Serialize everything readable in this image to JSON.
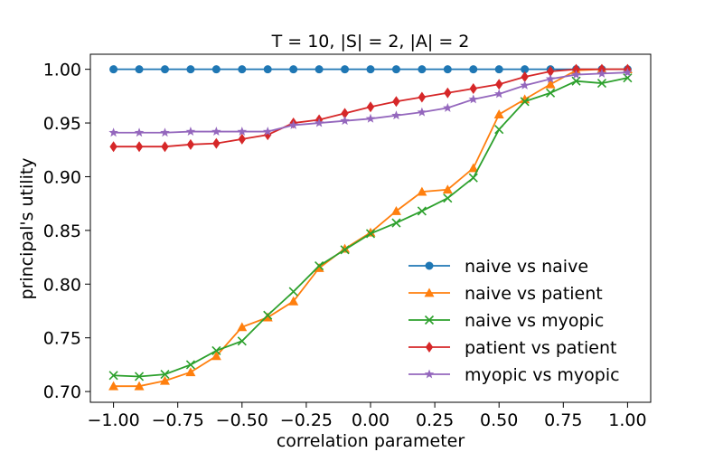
{
  "chart_data": {
    "type": "line",
    "title": "T = 10, |S| = 2, |A| = 2",
    "xlabel": "correlation parameter",
    "ylabel": "principal's utility",
    "xlim": [
      -1.09,
      1.09
    ],
    "ylim": [
      0.69,
      1.014
    ],
    "xticks": [
      -1.0,
      -0.75,
      -0.5,
      -0.25,
      0.0,
      0.25,
      0.5,
      0.75,
      1.0
    ],
    "xtick_labels": [
      "−1.00",
      "−0.75",
      "−0.50",
      "−0.25",
      "0.00",
      "0.25",
      "0.50",
      "0.75",
      "1.00"
    ],
    "yticks": [
      0.7,
      0.75,
      0.8,
      0.85,
      0.9,
      0.95,
      1.0
    ],
    "ytick_labels": [
      "0.70",
      "0.75",
      "0.80",
      "0.85",
      "0.90",
      "0.95",
      "1.00"
    ],
    "legend_position": "lower-right",
    "x": [
      -1.0,
      -0.9,
      -0.8,
      -0.7,
      -0.6,
      -0.5,
      -0.4,
      -0.3,
      -0.2,
      -0.1,
      0.0,
      0.1,
      0.2,
      0.3,
      0.4,
      0.5,
      0.6,
      0.7,
      0.8,
      0.9,
      1.0
    ],
    "series": [
      {
        "name": "naive vs naive",
        "color": "#1f77b4",
        "marker": "circle",
        "values": [
          1.0,
          1.0,
          1.0,
          1.0,
          1.0,
          1.0,
          1.0,
          1.0,
          1.0,
          1.0,
          1.0,
          1.0,
          1.0,
          1.0,
          1.0,
          1.0,
          1.0,
          1.0,
          1.0,
          1.0,
          1.0
        ]
      },
      {
        "name": "naive vs patient",
        "color": "#ff7f0e",
        "marker": "triangle",
        "values": [
          0.705,
          0.705,
          0.71,
          0.718,
          0.733,
          0.76,
          0.769,
          0.784,
          0.815,
          0.833,
          0.848,
          0.868,
          0.886,
          0.888,
          0.908,
          0.958,
          0.972,
          0.986,
          0.999,
          1.0,
          1.0
        ]
      },
      {
        "name": "naive vs myopic",
        "color": "#2ca02c",
        "marker": "x",
        "values": [
          0.715,
          0.714,
          0.716,
          0.725,
          0.738,
          0.747,
          0.771,
          0.793,
          0.817,
          0.832,
          0.847,
          0.857,
          0.868,
          0.88,
          0.899,
          0.944,
          0.97,
          0.978,
          0.989,
          0.987,
          0.992
        ]
      },
      {
        "name": "patient vs patient",
        "color": "#d62728",
        "marker": "diamond",
        "values": [
          0.928,
          0.928,
          0.928,
          0.93,
          0.931,
          0.935,
          0.939,
          0.95,
          0.953,
          0.959,
          0.965,
          0.97,
          0.974,
          0.978,
          0.982,
          0.986,
          0.993,
          0.998,
          1.0,
          1.0,
          1.0
        ]
      },
      {
        "name": "myopic vs myopic",
        "color": "#9467bd",
        "marker": "star",
        "values": [
          0.941,
          0.941,
          0.941,
          0.942,
          0.942,
          0.942,
          0.942,
          0.948,
          0.95,
          0.952,
          0.954,
          0.957,
          0.96,
          0.964,
          0.972,
          0.977,
          0.985,
          0.991,
          0.995,
          0.996,
          0.997
        ]
      }
    ]
  }
}
